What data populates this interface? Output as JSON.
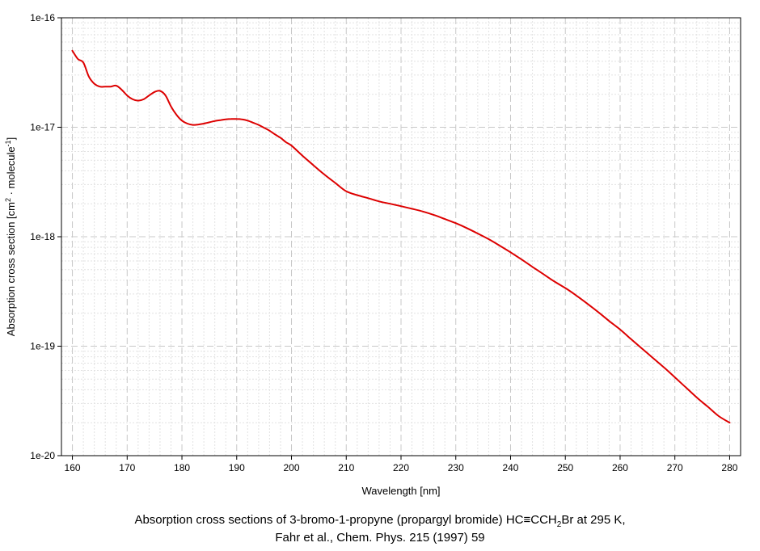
{
  "colors": {
    "series": "#dd0000",
    "grid_major": "#c8c8c8",
    "grid_minor": "#e2e2e2"
  },
  "caption": {
    "line1_pre": "Absorption cross sections of 3-bromo-1-propyne (propargyl bromide) HC≡CCH",
    "line1_sub": "2",
    "line1_post": "Br at 295 K,",
    "line2": "Fahr et al., Chem. Phys. 215 (1997) 59"
  },
  "chart_data": {
    "type": "line",
    "title": "Absorption cross sections of 3-bromo-1-propyne (propargyl bromide) HC≡CCH2Br at 295 K, Fahr et al., Chem. Phys. 215 (1997) 59",
    "xlabel": "Wavelength [nm]",
    "ylabel": "Absorption cross section [cm² · molecule⁻¹]",
    "ylabel_parts": {
      "base": "Absorption cross section [cm",
      "sup1": "2",
      "mid": " · molecule",
      "sup2": "-1",
      "end": "]"
    },
    "xlim": [
      158,
      282
    ],
    "ylim": [
      1e-20,
      1e-16
    ],
    "y_scale": "log",
    "grid": true,
    "x_ticks": [
      160,
      170,
      180,
      190,
      200,
      210,
      220,
      230,
      240,
      250,
      260,
      270,
      280
    ],
    "x_tick_labels": [
      "160",
      "170",
      "180",
      "190",
      "200",
      "210",
      "220",
      "230",
      "240",
      "250",
      "260",
      "270",
      "280"
    ],
    "y_ticks": [
      1e-20,
      1e-19,
      1e-18,
      1e-17,
      1e-16
    ],
    "y_tick_labels": [
      "1e-20",
      "1e-19",
      "1e-18",
      "1e-17",
      "1e-16"
    ],
    "series": [
      {
        "x": [
          160,
          161,
          162,
          163,
          164,
          165,
          166,
          167,
          168,
          169,
          170,
          171,
          172,
          173,
          174,
          175,
          176,
          177,
          178,
          179,
          180,
          181,
          182,
          183,
          184,
          185,
          186,
          187,
          188,
          189,
          190,
          191,
          192,
          193,
          194,
          195,
          196,
          197,
          198,
          199,
          200,
          202,
          204,
          206,
          208,
          210,
          212,
          214,
          216,
          218,
          220,
          222,
          224,
          226,
          228,
          230,
          232,
          234,
          236,
          238,
          240,
          242,
          244,
          246,
          248,
          250,
          251,
          252,
          254,
          256,
          258,
          260,
          262,
          264,
          266,
          268,
          270,
          272,
          274,
          276,
          278,
          280
        ],
        "y": [
          5e-17,
          4.2e-17,
          3.9e-17,
          2.9e-17,
          2.5e-17,
          2.35e-17,
          2.35e-17,
          2.35e-17,
          2.4e-17,
          2.2e-17,
          1.95e-17,
          1.8e-17,
          1.75e-17,
          1.8e-17,
          1.95e-17,
          2.1e-17,
          2.15e-17,
          1.95e-17,
          1.55e-17,
          1.3e-17,
          1.15e-17,
          1.08e-17,
          1.05e-17,
          1.06e-17,
          1.08e-17,
          1.11e-17,
          1.14e-17,
          1.16e-17,
          1.18e-17,
          1.19e-17,
          1.19e-17,
          1.18e-17,
          1.15e-17,
          1.1e-17,
          1.05e-17,
          9.9e-18,
          9.3e-18,
          8.6e-18,
          8e-18,
          7.3e-18,
          6.8e-18,
          5.5e-18,
          4.5e-18,
          3.7e-18,
          3.1e-18,
          2.6e-18,
          2.4e-18,
          2.25e-18,
          2.1e-18,
          2e-18,
          1.9e-18,
          1.8e-18,
          1.7e-18,
          1.58e-18,
          1.45e-18,
          1.33e-18,
          1.2e-18,
          1.07e-18,
          9.5e-19,
          8.3e-19,
          7.2e-19,
          6.2e-19,
          5.3e-19,
          4.55e-19,
          3.9e-19,
          3.4e-19,
          3.15e-19,
          2.9e-19,
          2.45e-19,
          2.05e-19,
          1.7e-19,
          1.42e-19,
          1.16e-19,
          9.5e-20,
          7.8e-20,
          6.4e-20,
          5.2e-20,
          4.2e-20,
          3.4e-20,
          2.8e-20,
          2.3e-20,
          2e-20
        ]
      }
    ]
  }
}
